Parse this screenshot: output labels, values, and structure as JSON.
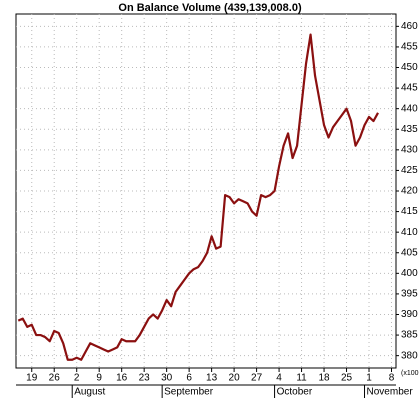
{
  "chart_data": {
    "type": "line",
    "title": "On Balance Volume (439,139,008.0)",
    "series": [
      {
        "name": "On Balance Volume",
        "color": "#8b1010",
        "values": [
          388.5,
          389,
          387,
          387.5,
          385,
          385,
          384.5,
          383.5,
          386,
          385.5,
          383,
          379,
          379,
          379.5,
          379,
          381,
          383,
          382.5,
          382,
          381.5,
          381,
          381.5,
          382,
          384,
          383.5,
          383.5,
          383.5,
          385,
          387,
          389,
          390,
          389,
          391,
          393.5,
          392,
          395.5,
          397,
          398.5,
          400,
          401,
          401.5,
          403,
          405,
          409,
          406,
          406.5,
          419,
          418.5,
          417,
          418,
          417.5,
          417,
          415,
          414,
          419,
          418.5,
          419,
          420,
          426,
          431,
          434,
          428,
          431,
          441,
          451,
          458,
          448,
          442,
          436,
          433,
          435.5,
          437,
          438.5,
          440,
          437,
          431,
          433,
          436,
          438,
          437,
          439
        ]
      }
    ],
    "xlim": [
      -0.5,
      84
    ],
    "xticks": [
      {
        "value": 3,
        "label": "19"
      },
      {
        "value": 8,
        "label": "26"
      },
      {
        "value": 13,
        "label": "2"
      },
      {
        "value": 18,
        "label": "9"
      },
      {
        "value": 23,
        "label": "16"
      },
      {
        "value": 28,
        "label": "23"
      },
      {
        "value": 33,
        "label": "30"
      },
      {
        "value": 38,
        "label": "6"
      },
      {
        "value": 43,
        "label": "13"
      },
      {
        "value": 48,
        "label": "20"
      },
      {
        "value": 53,
        "label": "27"
      },
      {
        "value": 58,
        "label": "4"
      },
      {
        "value": 63,
        "label": "11"
      },
      {
        "value": 68,
        "label": "18"
      },
      {
        "value": 73,
        "label": "25"
      },
      {
        "value": 78,
        "label": "1"
      },
      {
        "value": 83,
        "label": "8"
      }
    ],
    "months": [
      {
        "label": "August",
        "x": 12
      },
      {
        "label": "September",
        "x": 32
      },
      {
        "label": "October",
        "x": 57
      },
      {
        "label": "November",
        "x": 77
      }
    ],
    "ylim": [
      377,
      463
    ],
    "yticks": [
      380,
      385,
      390,
      395,
      400,
      405,
      410,
      415,
      420,
      425,
      430,
      435,
      440,
      445,
      450,
      455,
      460
    ],
    "y_unit_label": "(x100",
    "grid": true
  }
}
